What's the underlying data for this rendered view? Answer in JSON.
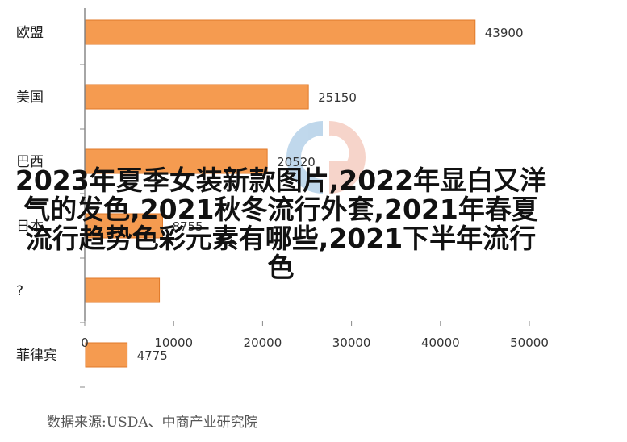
{
  "chart_data": {
    "type": "bar",
    "orientation": "horizontal",
    "categories": [
      "欧盟",
      "美国",
      "巴西",
      "日本",
      "?",
      "菲律宾"
    ],
    "values": [
      43900,
      25150,
      20520,
      8755,
      8400,
      4775
    ],
    "data_labels": [
      "43900",
      "25150",
      "20520",
      "8755",
      "",
      "4775"
    ],
    "xlim": [
      0,
      50000
    ],
    "x_ticks": [
      0,
      10000,
      20000,
      30000,
      40000,
      50000
    ],
    "x_tick_labels": [
      "0",
      "10000",
      "20000",
      "30000",
      "40000",
      "50000"
    ],
    "bar_color": "#F59B50",
    "bar_edge_color": "#E07A2A",
    "grid": false
  },
  "overlay_title": "2023年夏季女装新款图片,2022年显白又洋气的发色,2021秋冬流行外套,2021年春夏流行趋势色彩元素有哪些,2021下半年流行色",
  "source_note": "数据来源:USDA、中商产业研究院"
}
